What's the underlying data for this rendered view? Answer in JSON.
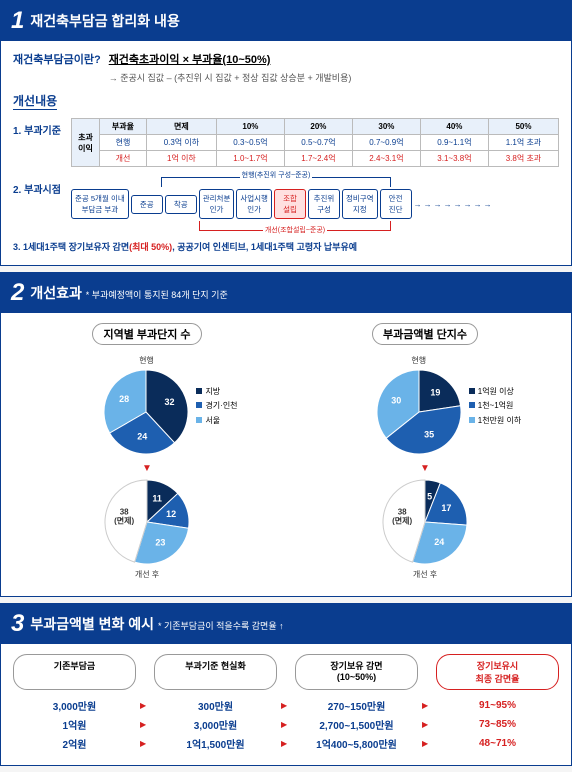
{
  "s1": {
    "num": "1",
    "title": "재건축부담금 합리화 내용",
    "def_lbl": "재건축부담금이란?",
    "def_val": "재건축초과이익 × 부과율(10~50%)",
    "def_note": "→ 준공시 집값 – (추진위 시 집값 + 정상 집값 상승분 + 개발비용)",
    "sub": "개선내용",
    "i1": "1. 부과기준",
    "tbl": {
      "head": [
        "부과율",
        "면제",
        "10%",
        "20%",
        "30%",
        "40%",
        "50%"
      ],
      "rhs": [
        "초과",
        "이익"
      ],
      "r1_lbl": "현행",
      "r1": [
        "0.3억 이하",
        "0.3~0.5억",
        "0.5~0.7억",
        "0.7~0.9억",
        "0.9~1.1억",
        "1.1억 초과"
      ],
      "r2_lbl": "개선",
      "r2": [
        "1억 이하",
        "1.0~1.7억",
        "1.7~2.4억",
        "2.4~3.1억",
        "3.1~3.8억",
        "3.8억 초과"
      ]
    },
    "i2": "2. 부과시점",
    "flow": [
      "안전\n진단",
      "정비구역\n지정",
      "추진위\n구성",
      "조합\n설립",
      "사업시행\n인가",
      "관리처분\n인가",
      "착공",
      "준공",
      "준공 5개월 이내\n부담금 부과"
    ],
    "arc_blue": "현행(추진위 구성~준공)",
    "arc_red": "개선(조합설립~준공)",
    "i3": "3. 1세대1주택 장기보유자 감면(최대 50%), 공공기여 인센티브, 1세대1주택 고령자 납부유예"
  },
  "s2": {
    "num": "2",
    "title": "개선효과",
    "note": "* 부과예정액이 통지된 84개 단지 기준",
    "c1": {
      "title": "지역별 부과단지 수",
      "lbl_before": "현행",
      "lbl_after": "개선 후",
      "legend": [
        "지방",
        "경기·인천",
        "서울"
      ],
      "colors": [
        "#0a2c5a",
        "#1e5fb0",
        "#6ab3e8"
      ],
      "before": [
        32,
        24,
        28
      ],
      "after": [
        11,
        12,
        23
      ],
      "after_ex": "38\n(면제)"
    },
    "c2": {
      "title": "부과금액별 단지수",
      "lbl_before": "현행",
      "lbl_after": "개선 후",
      "legend": [
        "1억원 이상",
        "1천~1억원",
        "1천만원 이하"
      ],
      "colors": [
        "#0a2c5a",
        "#1e5fb0",
        "#6ab3e8"
      ],
      "before": [
        19,
        35,
        30
      ],
      "after": [
        5,
        17,
        24
      ],
      "after_ex": "38\n(면제)"
    }
  },
  "s3": {
    "num": "3",
    "title": "부과금액별 변화 예시",
    "note": "* 기존부담금이 적을수록 감면율 ↑",
    "heads": [
      "기존부담금",
      "부과기준 현실화",
      "장기보유 감면\n(10~50%)",
      "장기보유시\n최종 감면율"
    ],
    "rows": [
      [
        "3,000만원",
        "300만원",
        "270~150만원",
        "91~95%"
      ],
      [
        "1억원",
        "3,000만원",
        "2,700~1,500만원",
        "73~85%"
      ],
      [
        "2억원",
        "1억1,500만원",
        "1억400~5,800만원",
        "48~71%"
      ]
    ]
  }
}
